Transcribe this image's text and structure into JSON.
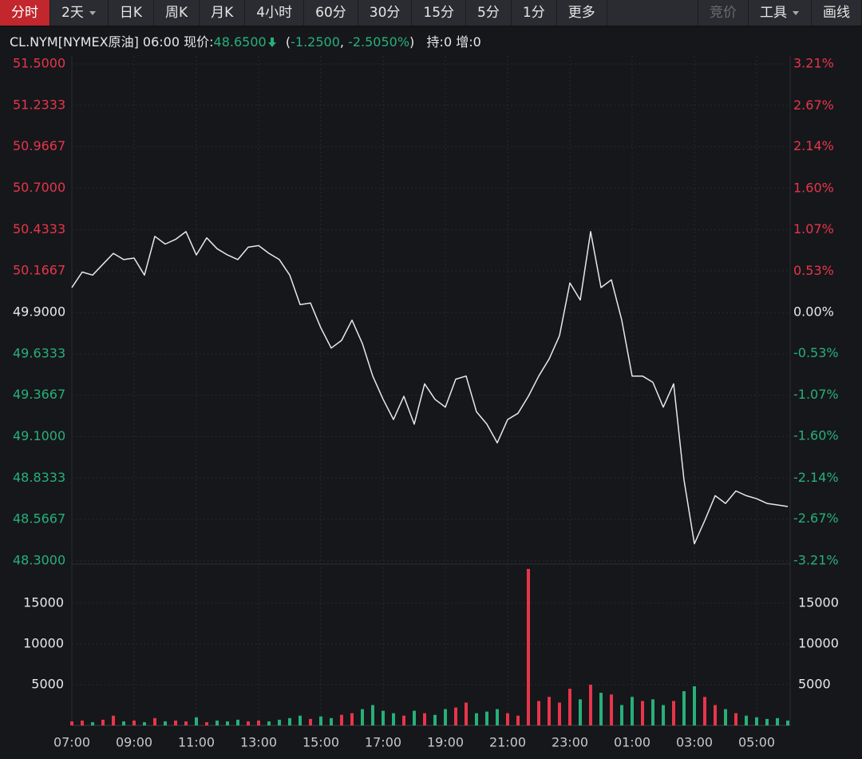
{
  "toolbar": {
    "left": [
      "分时",
      "2天",
      "日K",
      "周K",
      "月K",
      "4小时",
      "60分",
      "30分",
      "15分",
      "5分",
      "1分",
      "更多"
    ],
    "right": [
      "竞价",
      "工具",
      "画线"
    ]
  },
  "header": {
    "symbol": "CL.NYM[NYMEX原油]",
    "time": "06:00",
    "price_label": "现价:",
    "price": "48.6500",
    "open": "(",
    "change": "-1.2500",
    "sep": ", ",
    "change_pct": "-2.5050%",
    "close": ")",
    "hold": "持:0",
    "increase": "增:0"
  },
  "chart_data": [
    {
      "type": "line",
      "color": "#e8e8e8",
      "up_color": "#e8354a",
      "down_color": "#27b079",
      "grid": true,
      "categories": [
        "07:00",
        null,
        null,
        null,
        null,
        null,
        "09:00",
        null,
        null,
        null,
        null,
        null,
        "11:00",
        null,
        null,
        null,
        null,
        null,
        "13:00",
        null,
        null,
        null,
        null,
        null,
        "15:00",
        null,
        null,
        null,
        null,
        null,
        "17:00",
        null,
        null,
        null,
        null,
        null,
        "19:00",
        null,
        null,
        null,
        null,
        null,
        "21:00",
        null,
        null,
        null,
        null,
        null,
        "23:00",
        null,
        null,
        null,
        null,
        null,
        "01:00",
        null,
        null,
        null,
        null,
        null,
        "03:00",
        null,
        null,
        null,
        null,
        null,
        "05:00",
        null,
        null,
        null
      ],
      "values": [
        50.06,
        50.16,
        50.14,
        50.21,
        50.28,
        50.24,
        50.25,
        50.14,
        50.39,
        50.34,
        50.37,
        50.42,
        50.27,
        50.38,
        50.31,
        50.27,
        50.24,
        50.32,
        50.33,
        50.28,
        50.24,
        50.14,
        49.95,
        49.96,
        49.8,
        49.67,
        49.72,
        49.85,
        49.7,
        49.49,
        49.34,
        49.21,
        49.36,
        49.18,
        49.44,
        49.34,
        49.29,
        49.47,
        49.49,
        49.26,
        49.18,
        49.06,
        49.21,
        49.25,
        49.36,
        49.49,
        49.6,
        49.75,
        50.09,
        49.98,
        50.42,
        50.06,
        50.11,
        49.85,
        49.49,
        49.49,
        49.45,
        49.29,
        49.44,
        48.82,
        48.41,
        48.56,
        48.72,
        48.67,
        48.75,
        48.72,
        48.7,
        48.67,
        48.66,
        48.65
      ],
      "ylim": [
        48.3,
        51.5
      ],
      "yticks": [
        {
          "value": 51.5,
          "label": "51.5000"
        },
        {
          "value": 51.2333,
          "label": "51.2333"
        },
        {
          "value": 50.9667,
          "label": "50.9667"
        },
        {
          "value": 50.7,
          "label": "50.7000"
        },
        {
          "value": 50.4333,
          "label": "50.4333"
        },
        {
          "value": 50.1667,
          "label": "50.1667"
        },
        {
          "value": 49.9,
          "label": "49.9000"
        },
        {
          "value": 49.6333,
          "label": "49.6333"
        },
        {
          "value": 49.3667,
          "label": "49.3667"
        },
        {
          "value": 49.1,
          "label": "49.1000"
        },
        {
          "value": 48.8333,
          "label": "48.8333"
        },
        {
          "value": 48.5667,
          "label": "48.5667"
        },
        {
          "value": 48.3,
          "label": "48.3000"
        }
      ],
      "y2lim": [
        -3.21,
        3.21
      ],
      "y2ticks": [
        {
          "value": 3.21,
          "label": "3.21%"
        },
        {
          "value": 2.67,
          "label": "2.67%"
        },
        {
          "value": 2.14,
          "label": "2.14%"
        },
        {
          "value": 1.6,
          "label": "1.60%"
        },
        {
          "value": 1.07,
          "label": "1.07%"
        },
        {
          "value": 0.53,
          "label": "0.53%"
        },
        {
          "value": 0,
          "label": "0.00%"
        },
        {
          "value": -0.53,
          "label": "-0.53%"
        },
        {
          "value": -1.07,
          "label": "-1.07%"
        },
        {
          "value": -1.6,
          "label": "-1.60%"
        },
        {
          "value": -2.14,
          "label": "-2.14%"
        },
        {
          "value": -2.67,
          "label": "-2.67%"
        },
        {
          "value": -3.21,
          "label": "-3.21%"
        }
      ]
    },
    {
      "type": "bar",
      "up_color": "#e8354a",
      "down_color": "#27b079",
      "values": [
        500,
        600,
        400,
        700,
        1200,
        500,
        600,
        400,
        900,
        500,
        600,
        500,
        1000,
        400,
        600,
        500,
        700,
        500,
        600,
        500,
        700,
        900,
        1200,
        800,
        1100,
        900,
        1300,
        1500,
        2000,
        2500,
        1800,
        1500,
        1200,
        1800,
        1500,
        1300,
        2000,
        2200,
        2800,
        1500,
        1700,
        2000,
        1500,
        1200,
        19200,
        3000,
        3500,
        2800,
        4500,
        3200,
        5000,
        4000,
        3800,
        2500,
        3500,
        3000,
        3200,
        2500,
        3000,
        4200,
        4800,
        3500,
        2500,
        2000,
        1500,
        1200,
        1000,
        800,
        900,
        600
      ],
      "ylim": [
        0,
        19400
      ],
      "yticks": [
        5000,
        10000,
        15000
      ]
    }
  ]
}
